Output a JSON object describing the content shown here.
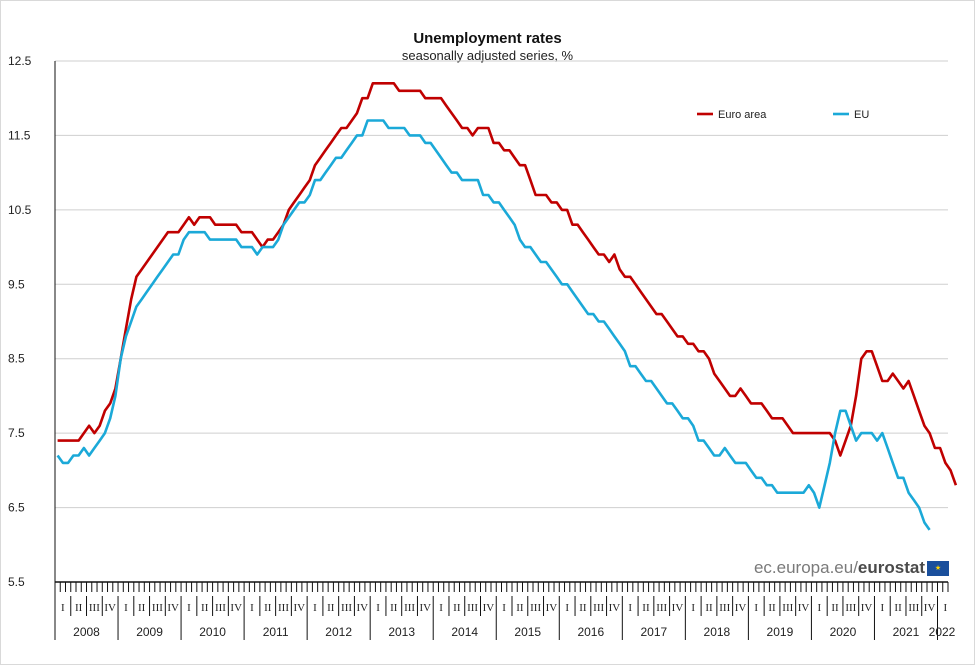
{
  "chart_data": {
    "type": "line",
    "title": "Unemployment rates",
    "subtitle": "seasonally adjusted series, %",
    "xlabel": "",
    "ylabel": "",
    "ylim": [
      5.5,
      12.5
    ],
    "yticks": [
      "12.5",
      "11.5",
      "10.5",
      "9.5",
      "8.5",
      "7.5",
      "6.5",
      "5.5"
    ],
    "grid": true,
    "legend_position": "top-right",
    "quarters": [
      "I",
      "II",
      "III",
      "IV"
    ],
    "years": [
      "2008",
      "2009",
      "2010",
      "2011",
      "2012",
      "2013",
      "2014",
      "2015",
      "2016",
      "2017",
      "2018",
      "2019",
      "2020",
      "2021",
      "2022"
    ],
    "x_start": "2008-01",
    "series": [
      {
        "name": "Euro area",
        "color": "#c00000",
        "values": [
          7.4,
          7.4,
          7.4,
          7.4,
          7.4,
          7.5,
          7.6,
          7.5,
          7.6,
          7.8,
          7.9,
          8.1,
          8.5,
          8.9,
          9.3,
          9.6,
          9.7,
          9.8,
          9.9,
          10.0,
          10.1,
          10.2,
          10.2,
          10.2,
          10.3,
          10.4,
          10.3,
          10.4,
          10.4,
          10.4,
          10.3,
          10.3,
          10.3,
          10.3,
          10.3,
          10.2,
          10.2,
          10.2,
          10.1,
          10.0,
          10.1,
          10.1,
          10.2,
          10.3,
          10.5,
          10.6,
          10.7,
          10.8,
          10.9,
          11.1,
          11.2,
          11.3,
          11.4,
          11.5,
          11.6,
          11.6,
          11.7,
          11.8,
          12.0,
          12.0,
          12.2,
          12.2,
          12.2,
          12.2,
          12.2,
          12.1,
          12.1,
          12.1,
          12.1,
          12.1,
          12.0,
          12.0,
          12.0,
          12.0,
          11.9,
          11.8,
          11.7,
          11.6,
          11.6,
          11.5,
          11.6,
          11.6,
          11.6,
          11.4,
          11.4,
          11.3,
          11.3,
          11.2,
          11.1,
          11.1,
          10.9,
          10.7,
          10.7,
          10.7,
          10.6,
          10.6,
          10.5,
          10.5,
          10.3,
          10.3,
          10.2,
          10.1,
          10.0,
          9.9,
          9.9,
          9.8,
          9.9,
          9.7,
          9.6,
          9.6,
          9.5,
          9.4,
          9.3,
          9.2,
          9.1,
          9.1,
          9.0,
          8.9,
          8.8,
          8.8,
          8.7,
          8.7,
          8.6,
          8.6,
          8.5,
          8.3,
          8.2,
          8.1,
          8.0,
          8.0,
          8.1,
          8.0,
          7.9,
          7.9,
          7.9,
          7.8,
          7.7,
          7.7,
          7.7,
          7.6,
          7.5,
          7.5,
          7.5,
          7.5,
          7.5,
          7.5,
          7.5,
          7.5,
          7.4,
          7.2,
          7.4,
          7.6,
          8.0,
          8.5,
          8.6,
          8.6,
          8.4,
          8.2,
          8.2,
          8.3,
          8.2,
          8.1,
          8.2,
          8.0,
          7.8,
          7.6,
          7.5,
          7.3,
          7.3,
          7.1,
          7.0,
          6.8
        ]
      },
      {
        "name": "EU",
        "color": "#1ba9d8",
        "values": [
          7.2,
          7.1,
          7.1,
          7.2,
          7.2,
          7.3,
          7.2,
          7.3,
          7.4,
          7.5,
          7.7,
          8.0,
          8.5,
          8.8,
          9.0,
          9.2,
          9.3,
          9.4,
          9.5,
          9.6,
          9.7,
          9.8,
          9.9,
          9.9,
          10.1,
          10.2,
          10.2,
          10.2,
          10.2,
          10.1,
          10.1,
          10.1,
          10.1,
          10.1,
          10.1,
          10.0,
          10.0,
          10.0,
          9.9,
          10.0,
          10.0,
          10.0,
          10.1,
          10.3,
          10.4,
          10.5,
          10.6,
          10.6,
          10.7,
          10.9,
          10.9,
          11.0,
          11.1,
          11.2,
          11.2,
          11.3,
          11.4,
          11.5,
          11.5,
          11.7,
          11.7,
          11.7,
          11.7,
          11.6,
          11.6,
          11.6,
          11.6,
          11.5,
          11.5,
          11.5,
          11.4,
          11.4,
          11.3,
          11.2,
          11.1,
          11.0,
          11.0,
          10.9,
          10.9,
          10.9,
          10.9,
          10.7,
          10.7,
          10.6,
          10.6,
          10.5,
          10.4,
          10.3,
          10.1,
          10.0,
          10.0,
          9.9,
          9.8,
          9.8,
          9.7,
          9.6,
          9.5,
          9.5,
          9.4,
          9.3,
          9.2,
          9.1,
          9.1,
          9.0,
          9.0,
          8.9,
          8.8,
          8.7,
          8.6,
          8.4,
          8.4,
          8.3,
          8.2,
          8.2,
          8.1,
          8.0,
          7.9,
          7.9,
          7.8,
          7.7,
          7.7,
          7.6,
          7.4,
          7.4,
          7.3,
          7.2,
          7.2,
          7.3,
          7.2,
          7.1,
          7.1,
          7.1,
          7.0,
          6.9,
          6.9,
          6.8,
          6.8,
          6.7,
          6.7,
          6.7,
          6.7,
          6.7,
          6.7,
          6.8,
          6.7,
          6.5,
          6.8,
          7.1,
          7.5,
          7.8,
          7.8,
          7.6,
          7.4,
          7.5,
          7.5,
          7.5,
          7.4,
          7.5,
          7.3,
          7.1,
          6.9,
          6.9,
          6.7,
          6.6,
          6.5,
          6.3,
          6.2
        ]
      }
    ]
  },
  "source": {
    "prefix": "ec.europa.eu/",
    "brand": "eurostat",
    "flag_glyph": "★"
  }
}
